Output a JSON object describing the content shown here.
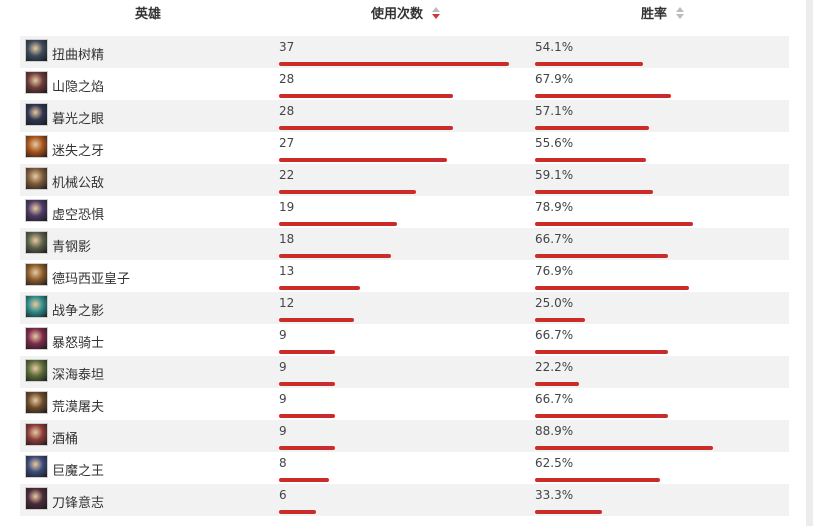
{
  "colors": {
    "bar": "#cc2b2b",
    "row_alt": "#f2f2f2",
    "sort_active": "#d03a3a",
    "sort_inactive": "#bcbcbc"
  },
  "header": {
    "hero_label": "英雄",
    "uses_label": "使用次数",
    "uses_sort": "descending",
    "winrate_label": "胜率",
    "winrate_sort": "none"
  },
  "scales": {
    "uses_max": 37,
    "winrate_max": 100
  },
  "rows": [
    {
      "name": "扭曲树精",
      "uses": "37",
      "winrate": "54.1%",
      "uses_num": 37,
      "winrate_num": 54.1,
      "avatar_color": "#3b4a5c",
      "avatar_icon": "hero-portrait"
    },
    {
      "name": "山隐之焰",
      "uses": "28",
      "winrate": "67.9%",
      "uses_num": 28,
      "winrate_num": 67.9,
      "avatar_color": "#6b3a3a",
      "avatar_icon": "hero-portrait"
    },
    {
      "name": "暮光之眼",
      "uses": "28",
      "winrate": "57.1%",
      "uses_num": 28,
      "winrate_num": 57.1,
      "avatar_color": "#2e3550",
      "avatar_icon": "hero-portrait"
    },
    {
      "name": "迷失之牙",
      "uses": "27",
      "winrate": "55.6%",
      "uses_num": 27,
      "winrate_num": 55.6,
      "avatar_color": "#a6531c",
      "avatar_icon": "hero-portrait"
    },
    {
      "name": "机械公敌",
      "uses": "22",
      "winrate": "59.1%",
      "uses_num": 22,
      "winrate_num": 59.1,
      "avatar_color": "#7a5a3a",
      "avatar_icon": "hero-portrait"
    },
    {
      "name": "虚空恐惧",
      "uses": "19",
      "winrate": "78.9%",
      "uses_num": 19,
      "winrate_num": 78.9,
      "avatar_color": "#4c3a66",
      "avatar_icon": "hero-portrait"
    },
    {
      "name": "青钢影",
      "uses": "18",
      "winrate": "66.7%",
      "uses_num": 18,
      "winrate_num": 66.7,
      "avatar_color": "#5a5f4a",
      "avatar_icon": "hero-portrait"
    },
    {
      "name": "德玛西亚皇子",
      "uses": "13",
      "winrate": "76.9%",
      "uses_num": 13,
      "winrate_num": 76.9,
      "avatar_color": "#8a5a2a",
      "avatar_icon": "hero-portrait"
    },
    {
      "name": "战争之影",
      "uses": "12",
      "winrate": "25.0%",
      "uses_num": 12,
      "winrate_num": 25.0,
      "avatar_color": "#2f8a8a",
      "avatar_icon": "hero-portrait"
    },
    {
      "name": "暴怒骑士",
      "uses": "9",
      "winrate": "66.7%",
      "uses_num": 9,
      "winrate_num": 66.7,
      "avatar_color": "#7a2a4a",
      "avatar_icon": "hero-portrait"
    },
    {
      "name": "深海泰坦",
      "uses": "9",
      "winrate": "22.2%",
      "uses_num": 9,
      "winrate_num": 22.2,
      "avatar_color": "#5a6a3a",
      "avatar_icon": "hero-portrait"
    },
    {
      "name": "荒漠屠夫",
      "uses": "9",
      "winrate": "66.7%",
      "uses_num": 9,
      "winrate_num": 66.7,
      "avatar_color": "#6a4a2a",
      "avatar_icon": "hero-portrait"
    },
    {
      "name": "酒桶",
      "uses": "9",
      "winrate": "88.9%",
      "uses_num": 9,
      "winrate_num": 88.9,
      "avatar_color": "#8a3a3a",
      "avatar_icon": "hero-portrait"
    },
    {
      "name": "巨魔之王",
      "uses": "8",
      "winrate": "62.5%",
      "uses_num": 8,
      "winrate_num": 62.5,
      "avatar_color": "#3a4a7a",
      "avatar_icon": "hero-portrait"
    },
    {
      "name": "刀锋意志",
      "uses": "6",
      "winrate": "33.3%",
      "uses_num": 6,
      "winrate_num": 33.3,
      "avatar_color": "#4a2a3a",
      "avatar_icon": "hero-portrait"
    }
  ]
}
